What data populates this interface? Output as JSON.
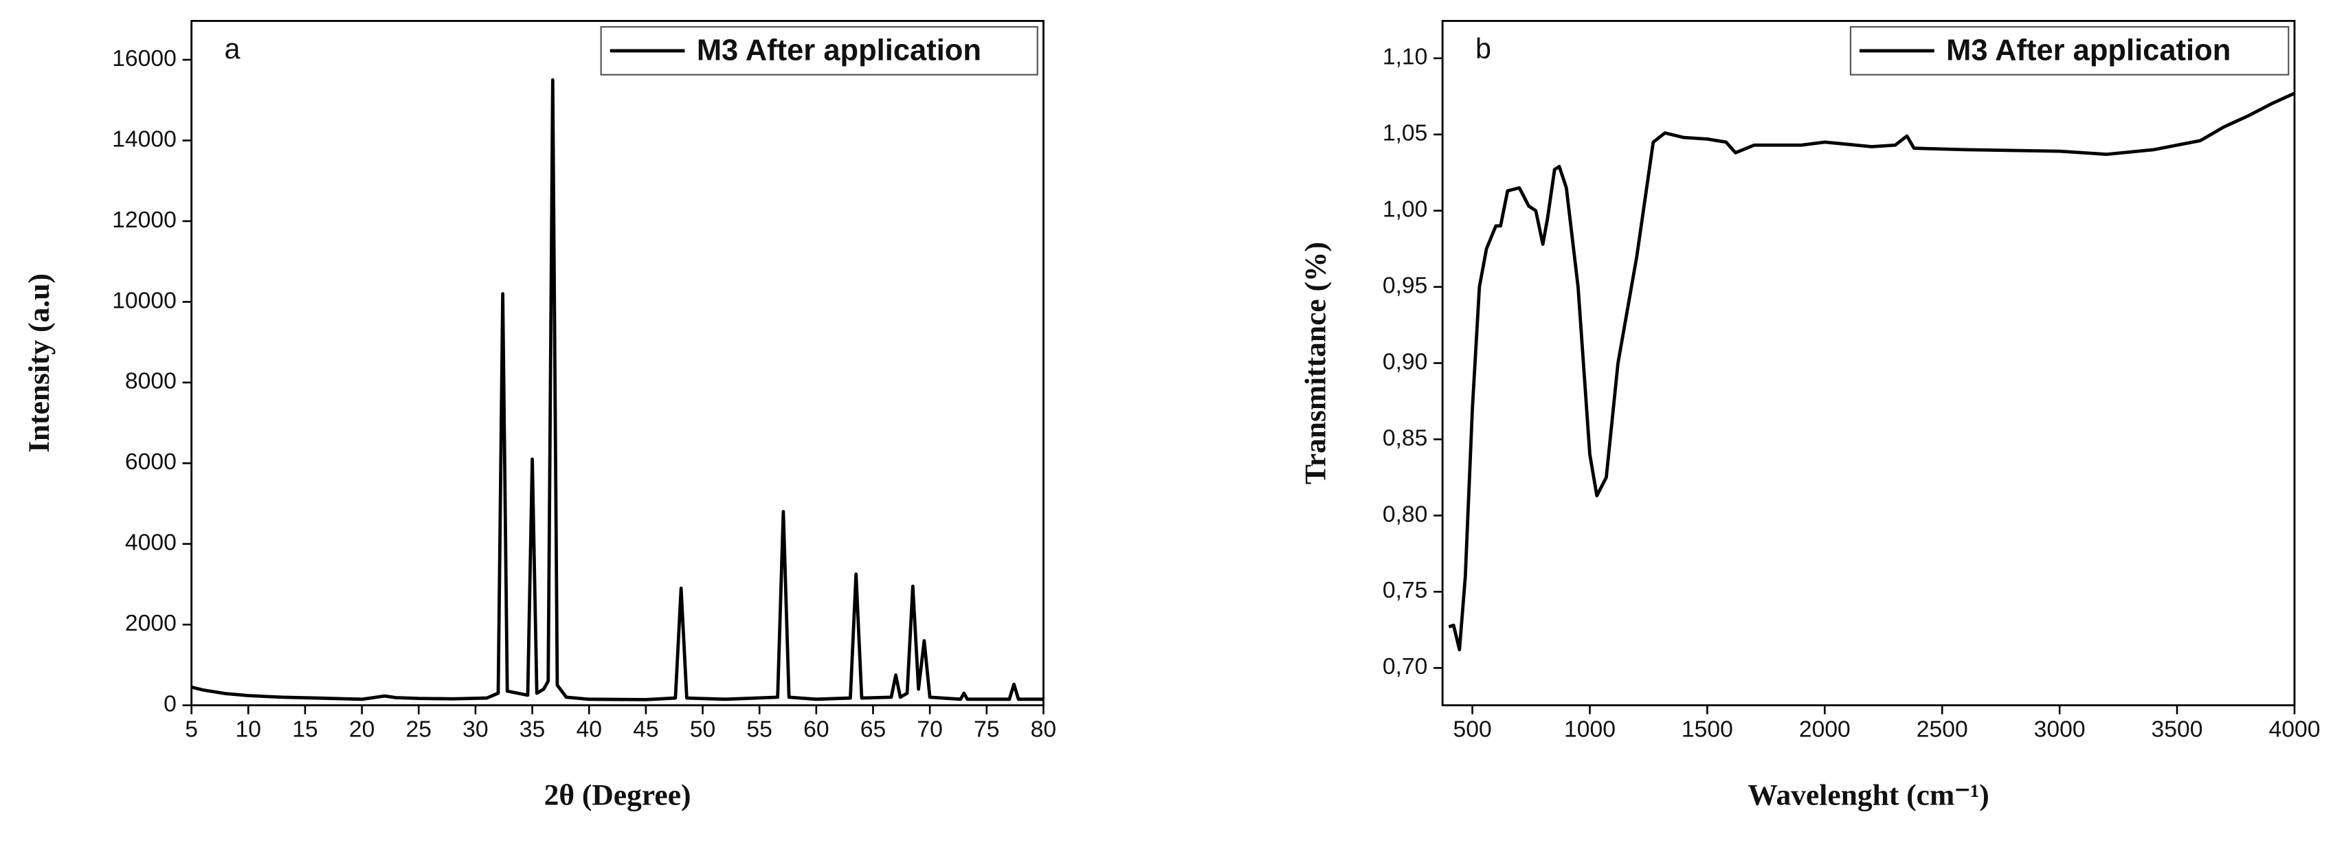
{
  "chart_data": [
    {
      "type": "line",
      "title": "a",
      "x_label": "2θ (Degree)",
      "y_label": "Intensity (a.u)",
      "legend": "upper right",
      "x": [
        5,
        6,
        8,
        10,
        13,
        16,
        20,
        22,
        23,
        25,
        28,
        31,
        32,
        32.4,
        32.8,
        34.6,
        35.0,
        35.4,
        36.0,
        36.4,
        36.8,
        37.2,
        38,
        40,
        45,
        47.6,
        48.1,
        48.6,
        52,
        56.6,
        57.1,
        57.6,
        60,
        63.0,
        63.5,
        64.0,
        66.6,
        67.0,
        67.4,
        68.0,
        68.5,
        69.0,
        69.5,
        70.0,
        72.7,
        73.0,
        73.3,
        77.0,
        77.4,
        77.8,
        80
      ],
      "series": [
        {
          "name": "M3 After application",
          "color": "#000000",
          "values": [
            450,
            380,
            290,
            240,
            200,
            180,
            150,
            230,
            190,
            170,
            160,
            180,
            300,
            10200,
            350,
            250,
            6100,
            300,
            400,
            600,
            15500,
            500,
            200,
            150,
            140,
            180,
            2900,
            180,
            150,
            200,
            4800,
            200,
            150,
            180,
            3250,
            180,
            200,
            750,
            200,
            300,
            2950,
            400,
            1600,
            200,
            150,
            300,
            150,
            150,
            520,
            150,
            150
          ]
        }
      ],
      "xlim": [
        5,
        80
      ],
      "xticks": [
        5,
        10,
        15,
        20,
        25,
        30,
        35,
        40,
        45,
        50,
        55,
        60,
        65,
        70,
        75,
        80
      ],
      "ylim": [
        0,
        16963
      ],
      "yticks": [
        0,
        2000,
        4000,
        6000,
        8000,
        10000,
        12000,
        14000,
        16000
      ]
    },
    {
      "type": "line",
      "title": "b",
      "x_label": "Wavelenght (cm⁻¹)",
      "y_label": "Transmittance (%)",
      "legend": "upper right",
      "x": [
        400,
        420,
        445,
        470,
        500,
        530,
        560,
        600,
        620,
        650,
        700,
        740,
        770,
        800,
        820,
        850,
        870,
        900,
        950,
        1000,
        1030,
        1070,
        1120,
        1200,
        1270,
        1320,
        1400,
        1500,
        1580,
        1620,
        1700,
        1900,
        2000,
        2200,
        2300,
        2350,
        2380,
        2600,
        3000,
        3200,
        3400,
        3600,
        3700,
        3800,
        3900,
        4000
      ],
      "series": [
        {
          "name": "M3 After application",
          "color": "#000000",
          "values": [
            0.727,
            0.728,
            0.712,
            0.76,
            0.87,
            0.95,
            0.975,
            0.99,
            0.99,
            1.013,
            1.015,
            1.003,
            1.0,
            0.978,
            0.995,
            1.027,
            1.029,
            1.015,
            0.95,
            0.84,
            0.813,
            0.825,
            0.9,
            0.97,
            1.045,
            1.051,
            1.048,
            1.047,
            1.045,
            1.038,
            1.043,
            1.043,
            1.045,
            1.042,
            1.043,
            1.049,
            1.041,
            1.04,
            1.039,
            1.037,
            1.04,
            1.046,
            1.055,
            1.062,
            1.07,
            1.077
          ]
        }
      ],
      "xlim": [
        373,
        4000
      ],
      "xticks": [
        500,
        1000,
        1500,
        2000,
        2500,
        3000,
        3500,
        4000
      ],
      "ylim": [
        0.6755,
        1.1245
      ],
      "yticks": [
        {
          "value": 0.7,
          "label": "0,70"
        },
        {
          "value": 0.75,
          "label": "0,75"
        },
        {
          "value": 0.8,
          "label": "0,80"
        },
        {
          "value": 0.85,
          "label": "0,85"
        },
        {
          "value": 0.9,
          "label": "0,90"
        },
        {
          "value": 0.95,
          "label": "0,95"
        },
        {
          "value": 1.0,
          "label": "1,00"
        },
        {
          "value": 1.05,
          "label": "1,05"
        },
        {
          "value": 1.1,
          "label": "1,10"
        }
      ]
    }
  ]
}
